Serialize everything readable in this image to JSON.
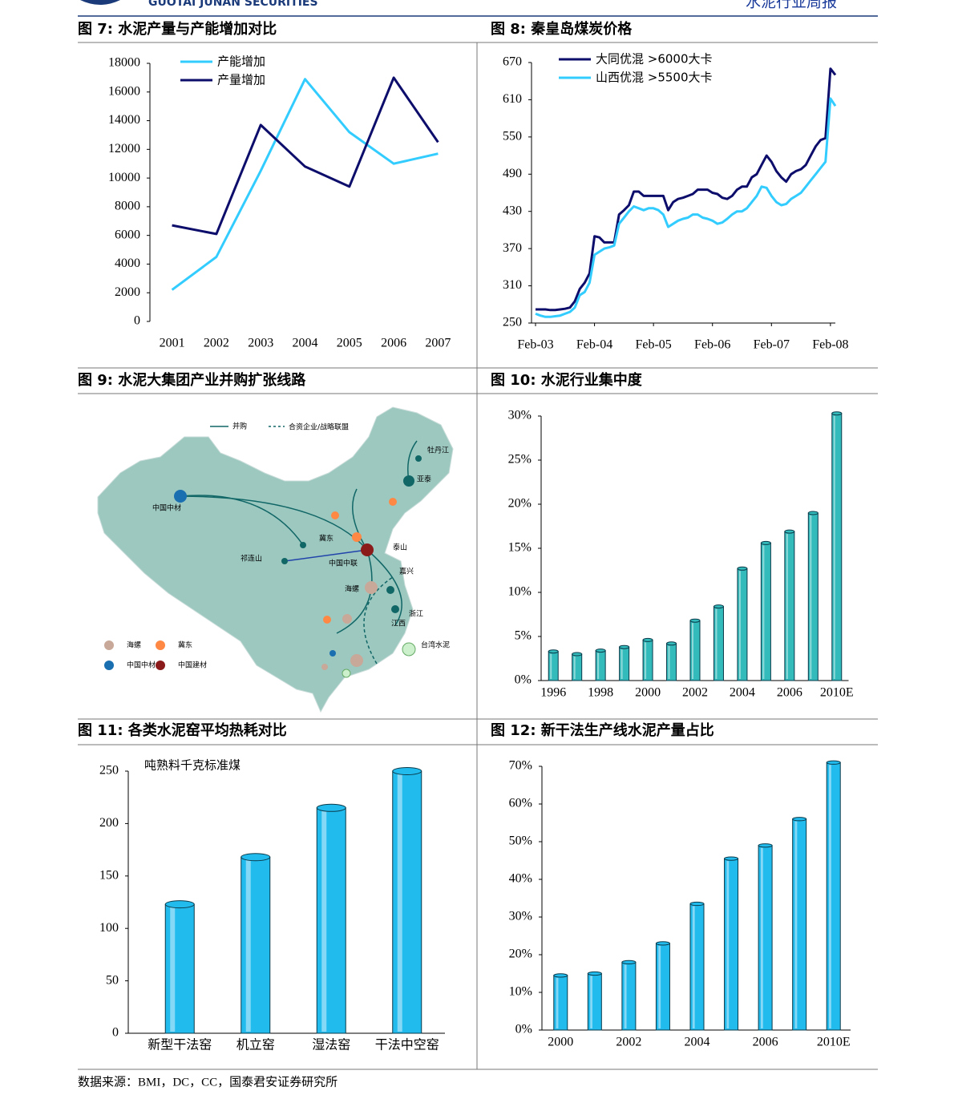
{
  "header": {
    "brand": "GUOTAI JUNAN SECURITIES",
    "report": "水泥行业周报"
  },
  "chart_data": [
    {
      "type": "line",
      "title": "图 7: 水泥产量与产能增加对比",
      "categories": [
        "2001",
        "2002",
        "2003",
        "2004",
        "2005",
        "2006",
        "2007"
      ],
      "series": [
        {
          "name": "产能增加",
          "color": "#33ccff",
          "values": [
            2200,
            4500,
            10500,
            16900,
            13200,
            11000,
            11700
          ]
        },
        {
          "name": "产量增加",
          "color": "#0d0d6b",
          "values": [
            6700,
            6100,
            13700,
            10800,
            9400,
            17000,
            12500
          ]
        }
      ],
      "ylim": [
        0,
        18000
      ],
      "yticks": [
        0,
        2000,
        4000,
        6000,
        8000,
        10000,
        12000,
        14000,
        16000,
        18000
      ],
      "grid": false
    },
    {
      "type": "line",
      "title": "图 8: 秦皇岛煤炭价格",
      "x": [
        "2003-02",
        "2003-03",
        "2003-04",
        "2003-05",
        "2003-06",
        "2003-07",
        "2003-08",
        "2003-09",
        "2003-10",
        "2003-11",
        "2003-12",
        "2004-01",
        "2004-02",
        "2004-03",
        "2004-04",
        "2004-05",
        "2004-06",
        "2004-07",
        "2004-08",
        "2004-09",
        "2004-10",
        "2004-11",
        "2004-12",
        "2005-01",
        "2005-02",
        "2005-03",
        "2005-04",
        "2005-05",
        "2005-06",
        "2005-07",
        "2005-08",
        "2005-09",
        "2005-10",
        "2005-11",
        "2005-12",
        "2006-01",
        "2006-02",
        "2006-03",
        "2006-04",
        "2006-05",
        "2006-06",
        "2006-07",
        "2006-08",
        "2006-09",
        "2006-10",
        "2006-11",
        "2006-12",
        "2007-01",
        "2007-02",
        "2007-03",
        "2007-04",
        "2007-05",
        "2007-06",
        "2007-07",
        "2007-08",
        "2007-09",
        "2007-10",
        "2007-11",
        "2007-12",
        "2008-01",
        "2008-02",
        "2008-03"
      ],
      "series": [
        {
          "name": "大同优混 >6000大卡",
          "color": "#0d0d6b",
          "values": [
            272,
            272,
            272,
            271,
            271,
            272,
            273,
            275,
            285,
            305,
            315,
            330,
            390,
            388,
            380,
            380,
            380,
            425,
            432,
            440,
            462,
            462,
            455,
            455,
            455,
            455,
            455,
            432,
            445,
            450,
            452,
            455,
            458,
            465,
            465,
            465,
            460,
            458,
            452,
            450,
            455,
            465,
            470,
            470,
            485,
            490,
            505,
            520,
            510,
            495,
            485,
            478,
            490,
            495,
            498,
            505,
            520,
            535,
            545,
            548,
            660,
            650
          ]
        },
        {
          "name": "山西优混 >5500大卡",
          "color": "#33ccff",
          "values": [
            265,
            262,
            260,
            260,
            261,
            262,
            265,
            268,
            275,
            295,
            300,
            315,
            360,
            365,
            370,
            372,
            375,
            410,
            420,
            430,
            438,
            435,
            432,
            435,
            435,
            432,
            425,
            405,
            410,
            415,
            418,
            420,
            425,
            425,
            420,
            418,
            415,
            410,
            412,
            418,
            425,
            430,
            430,
            435,
            445,
            455,
            470,
            468,
            455,
            445,
            440,
            442,
            450,
            455,
            460,
            470,
            480,
            490,
            500,
            510,
            612,
            600
          ]
        }
      ],
      "xlim": [
        "2003-02",
        "2008-03"
      ],
      "xticks": [
        {
          "value": "2003-02",
          "label": "Feb-03"
        },
        {
          "value": "2004-02",
          "label": "Feb-04"
        },
        {
          "value": "2005-02",
          "label": "Feb-05"
        },
        {
          "value": "2006-02",
          "label": "Feb-06"
        },
        {
          "value": "2007-02",
          "label": "Feb-07"
        },
        {
          "value": "2008-02",
          "label": "Feb-08"
        }
      ],
      "ylim": [
        250,
        670
      ],
      "yticks": [
        250,
        310,
        370,
        430,
        490,
        550,
        610,
        670
      ],
      "grid": false
    },
    {
      "type": "map",
      "title": "图 9: 水泥大集团产业并购扩张线路",
      "legend": [
        "并购",
        "合资企业/战略联盟",
        "海螺",
        "冀东",
        "中国中材",
        "中国建材"
      ],
      "labels": [
        "牡丹江",
        "亚泰",
        "冀东",
        "泰山",
        "祁连山",
        "中国中材",
        "中国中联",
        "海螺",
        "嘉兴",
        "浙江",
        "江西",
        "台湾水泥"
      ]
    },
    {
      "type": "bar",
      "title": "图 10: 水泥行业集中度",
      "categories": [
        "1996",
        null,
        "1998",
        null,
        "2000",
        null,
        "2002",
        null,
        "2004",
        null,
        "2006",
        null,
        "2010E"
      ],
      "values": [
        3.3,
        3.0,
        3.4,
        3.8,
        4.6,
        4.2,
        6.8,
        8.4,
        12.7,
        15.6,
        16.9,
        19.0,
        30.3
      ],
      "color": "#33bbbb",
      "ylim": [
        0,
        30
      ],
      "yticks": [
        {
          "value": 0,
          "label": "0%"
        },
        {
          "value": 5,
          "label": "5%"
        },
        {
          "value": 10,
          "label": "10%"
        },
        {
          "value": 15,
          "label": "15%"
        },
        {
          "value": 20,
          "label": "20%"
        },
        {
          "value": 25,
          "label": "25%"
        },
        {
          "value": 30,
          "label": "30%"
        }
      ],
      "grid": false
    },
    {
      "type": "bar",
      "title": "图 11: 各类水泥窑平均热耗对比",
      "annotation": "吨熟料千克标准煤",
      "categories": [
        "新型干法窑",
        "机立窑",
        "湿法窑",
        "干法中空窑"
      ],
      "values": [
        123,
        168,
        215,
        250
      ],
      "color": "#22bbee",
      "ylim": [
        0,
        250
      ],
      "yticks": [
        0,
        50,
        100,
        150,
        200,
        250
      ],
      "grid": false
    },
    {
      "type": "bar",
      "title": "图 12: 新干法生产线水泥产量占比",
      "categories": [
        "2000",
        null,
        "2002",
        null,
        "2004",
        null,
        "2006",
        null,
        "2010E"
      ],
      "values": [
        14.5,
        15,
        18,
        23,
        33.5,
        45.5,
        49,
        56,
        71
      ],
      "color": "#22bbee",
      "ylim": [
        0,
        70
      ],
      "yticks": [
        {
          "value": 0,
          "label": "0%"
        },
        {
          "value": 10,
          "label": "10%"
        },
        {
          "value": 20,
          "label": "20%"
        },
        {
          "value": 30,
          "label": "30%"
        },
        {
          "value": 40,
          "label": "40%"
        },
        {
          "value": 50,
          "label": "50%"
        },
        {
          "value": 60,
          "label": "60%"
        },
        {
          "value": 70,
          "label": "70%"
        }
      ],
      "grid": false
    }
  ],
  "source": "数据来源：BMI，DC，CC，国泰君安证券研究所"
}
